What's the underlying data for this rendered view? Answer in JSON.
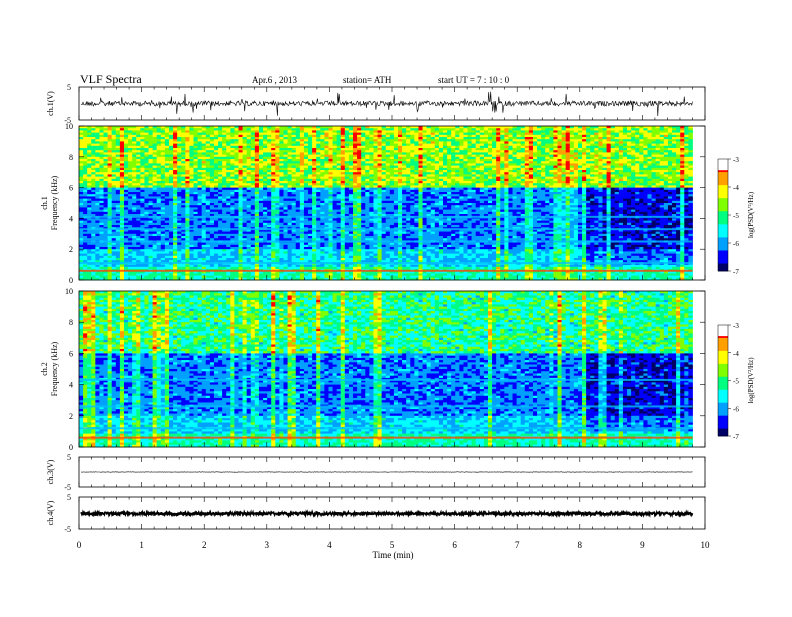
{
  "header": {
    "title": "VLF  Spectra",
    "date": "Apr.6  , 2013",
    "station": "station= ATH",
    "start": "start  UT  =    7  : 10 : 0"
  },
  "chart_data": [
    {
      "type": "line",
      "panel": "ch1-waveform",
      "ylabel": "ch.1(V)",
      "yticks": [
        "5",
        "-5"
      ],
      "ylim": [
        -5,
        5
      ],
      "trace_level": 0,
      "xlim": [
        0,
        10
      ]
    },
    {
      "type": "heatmap",
      "panel": "ch1-spectrogram",
      "ylabel_channel": "ch.1",
      "ylabel": "Frequency  (kHz)",
      "ylim": [
        0,
        10
      ],
      "yticks": [
        "0",
        "2",
        "4",
        "6",
        "8",
        "10"
      ],
      "xlim": [
        0,
        10
      ],
      "data_end_min": 9.8,
      "colorbar": {
        "label": "log(PSD(V²/Hz)",
        "ticks": [
          "-3",
          "-4",
          "-5",
          "-6",
          "-7"
        ],
        "range": [
          -7,
          -3
        ]
      }
    },
    {
      "type": "heatmap",
      "panel": "ch2-spectrogram",
      "ylabel_channel": "ch.2",
      "ylabel": "Frequency  (kHz)",
      "ylim": [
        0,
        10
      ],
      "yticks": [
        "0",
        "2",
        "4",
        "6",
        "8",
        "10"
      ],
      "xlim": [
        0,
        10
      ],
      "data_end_min": 9.8,
      "colorbar": {
        "label": "log(PSD(V²/Hz)",
        "ticks": [
          "-3",
          "-4",
          "-5",
          "-6",
          "-7"
        ],
        "range": [
          -7,
          -3
        ]
      }
    },
    {
      "type": "line",
      "panel": "ch3-waveform",
      "ylabel": "ch.3(V)",
      "yticks": [
        "5",
        "-5"
      ],
      "ylim": [
        -5,
        5
      ],
      "trace_level": 0,
      "xlim": [
        0,
        10
      ]
    },
    {
      "type": "line",
      "panel": "ch4-waveform",
      "ylabel": "ch.4(V)",
      "yticks": [
        "5",
        "-5"
      ],
      "ylim": [
        -5,
        5
      ],
      "trace_level": -0.2,
      "xlim": [
        0,
        10
      ],
      "xlabel": "Time  (min)",
      "xticks": [
        "0",
        "1",
        "2",
        "3",
        "4",
        "5",
        "6",
        "7",
        "8",
        "9",
        "10"
      ]
    }
  ],
  "colors": {
    "colormap": [
      "#000066",
      "#0000ff",
      "#00a0ff",
      "#00ffff",
      "#00ff80",
      "#80ff00",
      "#ffff00",
      "#ffa000",
      "#ff0000",
      "#ffffff"
    ],
    "trace": "#000000"
  }
}
